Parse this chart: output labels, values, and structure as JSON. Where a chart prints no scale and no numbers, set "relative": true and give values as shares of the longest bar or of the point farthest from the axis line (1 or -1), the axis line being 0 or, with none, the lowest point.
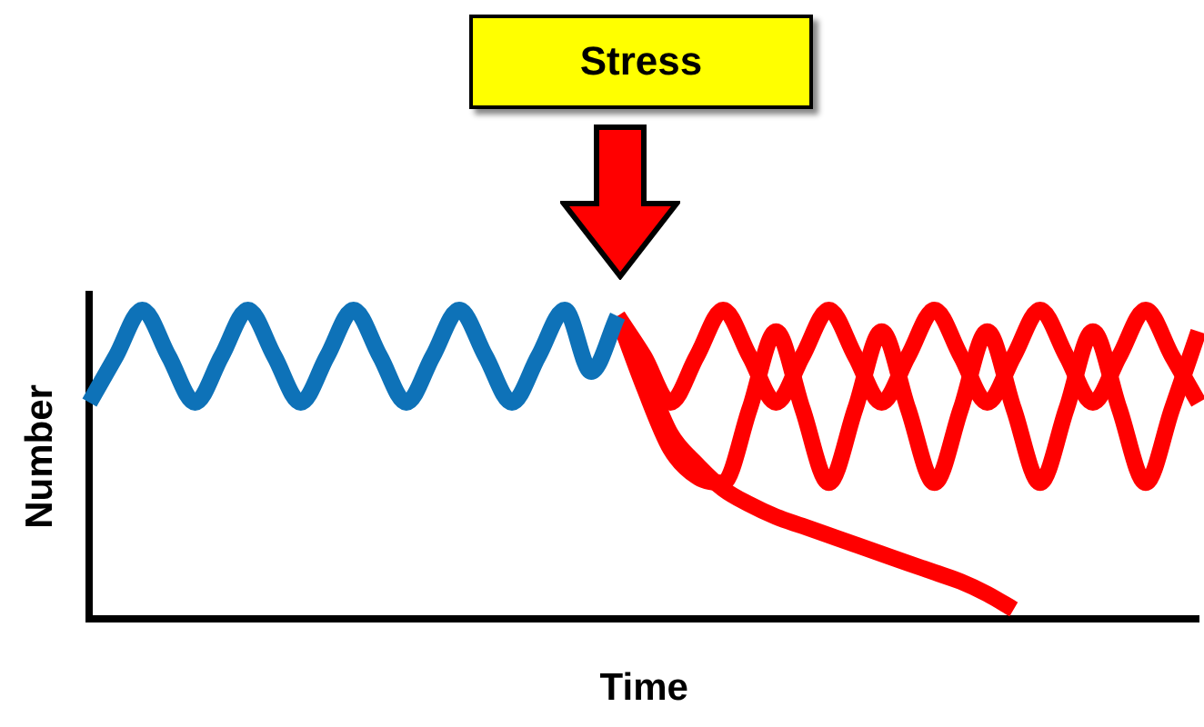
{
  "chart_data": {
    "type": "line",
    "relative": true,
    "xlabel": "Time",
    "ylabel": "Number",
    "legend": false,
    "grid": false,
    "annotations": [
      "Stress"
    ],
    "categories": [
      null,
      null,
      null,
      null,
      null,
      null,
      null,
      null,
      null,
      null,
      null,
      null,
      null,
      null,
      null,
      null,
      null,
      null,
      null,
      null,
      null,
      null,
      null,
      null,
      null,
      null,
      null,
      null,
      null,
      null,
      null,
      null,
      null,
      null,
      null,
      null,
      null,
      null,
      null,
      null,
      null,
      null,
      null
    ],
    "series": [
      {
        "color": "#0e72b8",
        "values": [
          0.7,
          0.85,
          1,
          0.85,
          0.7,
          0.85,
          1,
          0.85,
          0.7,
          0.85,
          1,
          0.85,
          0.7,
          0.85,
          1,
          0.85,
          0.7,
          0.85,
          1,
          0.8,
          0.98,
          null,
          null,
          null,
          null,
          null,
          null,
          null,
          null,
          null,
          null,
          null,
          null,
          null,
          null,
          null,
          null,
          null,
          null,
          null,
          null,
          null,
          null
        ]
      },
      {
        "color": "#ff0000",
        "values": [
          null,
          null,
          null,
          null,
          null,
          null,
          null,
          null,
          null,
          null,
          null,
          null,
          null,
          null,
          null,
          null,
          null,
          null,
          null,
          null,
          0.98,
          0.85,
          0.7,
          0.85,
          1,
          0.85,
          0.7,
          0.85,
          1,
          0.85,
          0.7,
          0.85,
          1,
          0.85,
          0.7,
          0.85,
          1,
          0.85,
          0.7,
          0.85,
          1,
          0.85,
          0.7
        ]
      },
      {
        "color": "#ff0000",
        "values": [
          null,
          null,
          null,
          null,
          null,
          null,
          null,
          null,
          null,
          null,
          null,
          null,
          null,
          null,
          null,
          null,
          null,
          null,
          null,
          null,
          0.98,
          0.75,
          0.55,
          0.46,
          0.44,
          0.68,
          0.93,
          0.68,
          0.44,
          0.68,
          0.93,
          0.68,
          0.44,
          0.68,
          0.93,
          0.68,
          0.44,
          0.68,
          0.93,
          0.68,
          0.44,
          0.68,
          0.93
        ]
      },
      {
        "color": "#ff0000",
        "values": [
          null,
          null,
          null,
          null,
          null,
          null,
          null,
          null,
          null,
          null,
          null,
          null,
          null,
          null,
          null,
          null,
          null,
          null,
          null,
          null,
          0.98,
          0.8,
          0.6,
          0.5,
          0.42,
          0.37,
          0.33,
          0.3,
          0.27,
          0.24,
          0.21,
          0.18,
          0.15,
          0.12,
          0.08,
          0.03,
          null,
          null,
          null,
          null,
          null,
          null,
          null
        ]
      }
    ]
  }
}
